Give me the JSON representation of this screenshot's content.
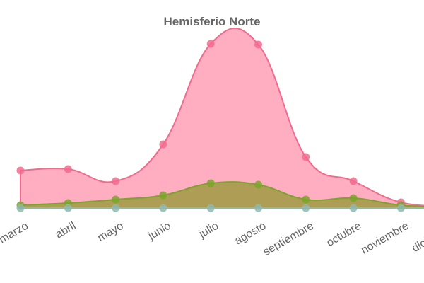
{
  "chart_data": {
    "type": "area",
    "title": "Hemisferio Norte",
    "categories": [
      "marzo",
      "abril",
      "mayo",
      "junio",
      "julio",
      "agosto",
      "septiembre",
      "octubre",
      "noviembre",
      "diciembre"
    ],
    "series": [
      {
        "color": "#f26b8f",
        "fill": "rgba(255,105,140,0.55)",
        "values": [
          53,
          55,
          38,
          90,
          232,
          231,
          72,
          38,
          8,
          3
        ]
      },
      {
        "color": "#7aa52a",
        "fill": "rgba(140,150,40,0.7)",
        "values": [
          4,
          7,
          12,
          18,
          35,
          33,
          12,
          14,
          4,
          1
        ]
      },
      {
        "color": "#8fb8b0",
        "fill": "rgba(140,190,180,0.5)",
        "values": [
          0,
          0,
          0,
          0,
          0,
          0,
          0,
          0,
          0,
          0
        ]
      }
    ],
    "ylim": [
      0,
      260
    ]
  }
}
